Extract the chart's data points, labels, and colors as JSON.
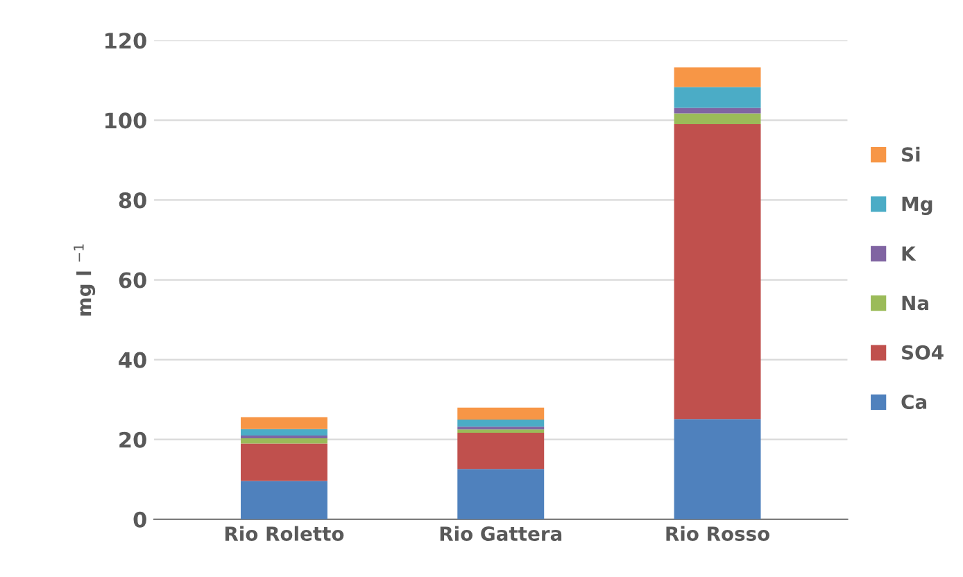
{
  "chart_data": {
    "type": "bar",
    "stacked": true,
    "ylabel": "mg l $^{−1}$",
    "categories": [
      "Rio Roletto",
      "Rio Gattera",
      "Rio Rosso"
    ],
    "series": [
      {
        "name": "Ca",
        "color": "#4f81bd",
        "values": [
          9.6,
          12.6,
          25.1
        ]
      },
      {
        "name": "SO4",
        "color": "#c0504d",
        "values": [
          9.4,
          9.1,
          73.9
        ]
      },
      {
        "name": "Na",
        "color": "#9bbb59",
        "values": [
          1.3,
          0.8,
          2.7
        ]
      },
      {
        "name": "K",
        "color": "#8064a2",
        "values": [
          0.7,
          0.7,
          1.4
        ]
      },
      {
        "name": "Mg",
        "color": "#4bacc6",
        "values": [
          1.6,
          1.8,
          5.2
        ]
      },
      {
        "name": "Si",
        "color": "#f79646",
        "values": [
          3.0,
          3.0,
          4.9
        ]
      }
    ],
    "ylim": [
      0,
      120
    ],
    "yticks": [
      0,
      20,
      40,
      60,
      80,
      100,
      120
    ],
    "grid": "y",
    "legend": "right"
  }
}
